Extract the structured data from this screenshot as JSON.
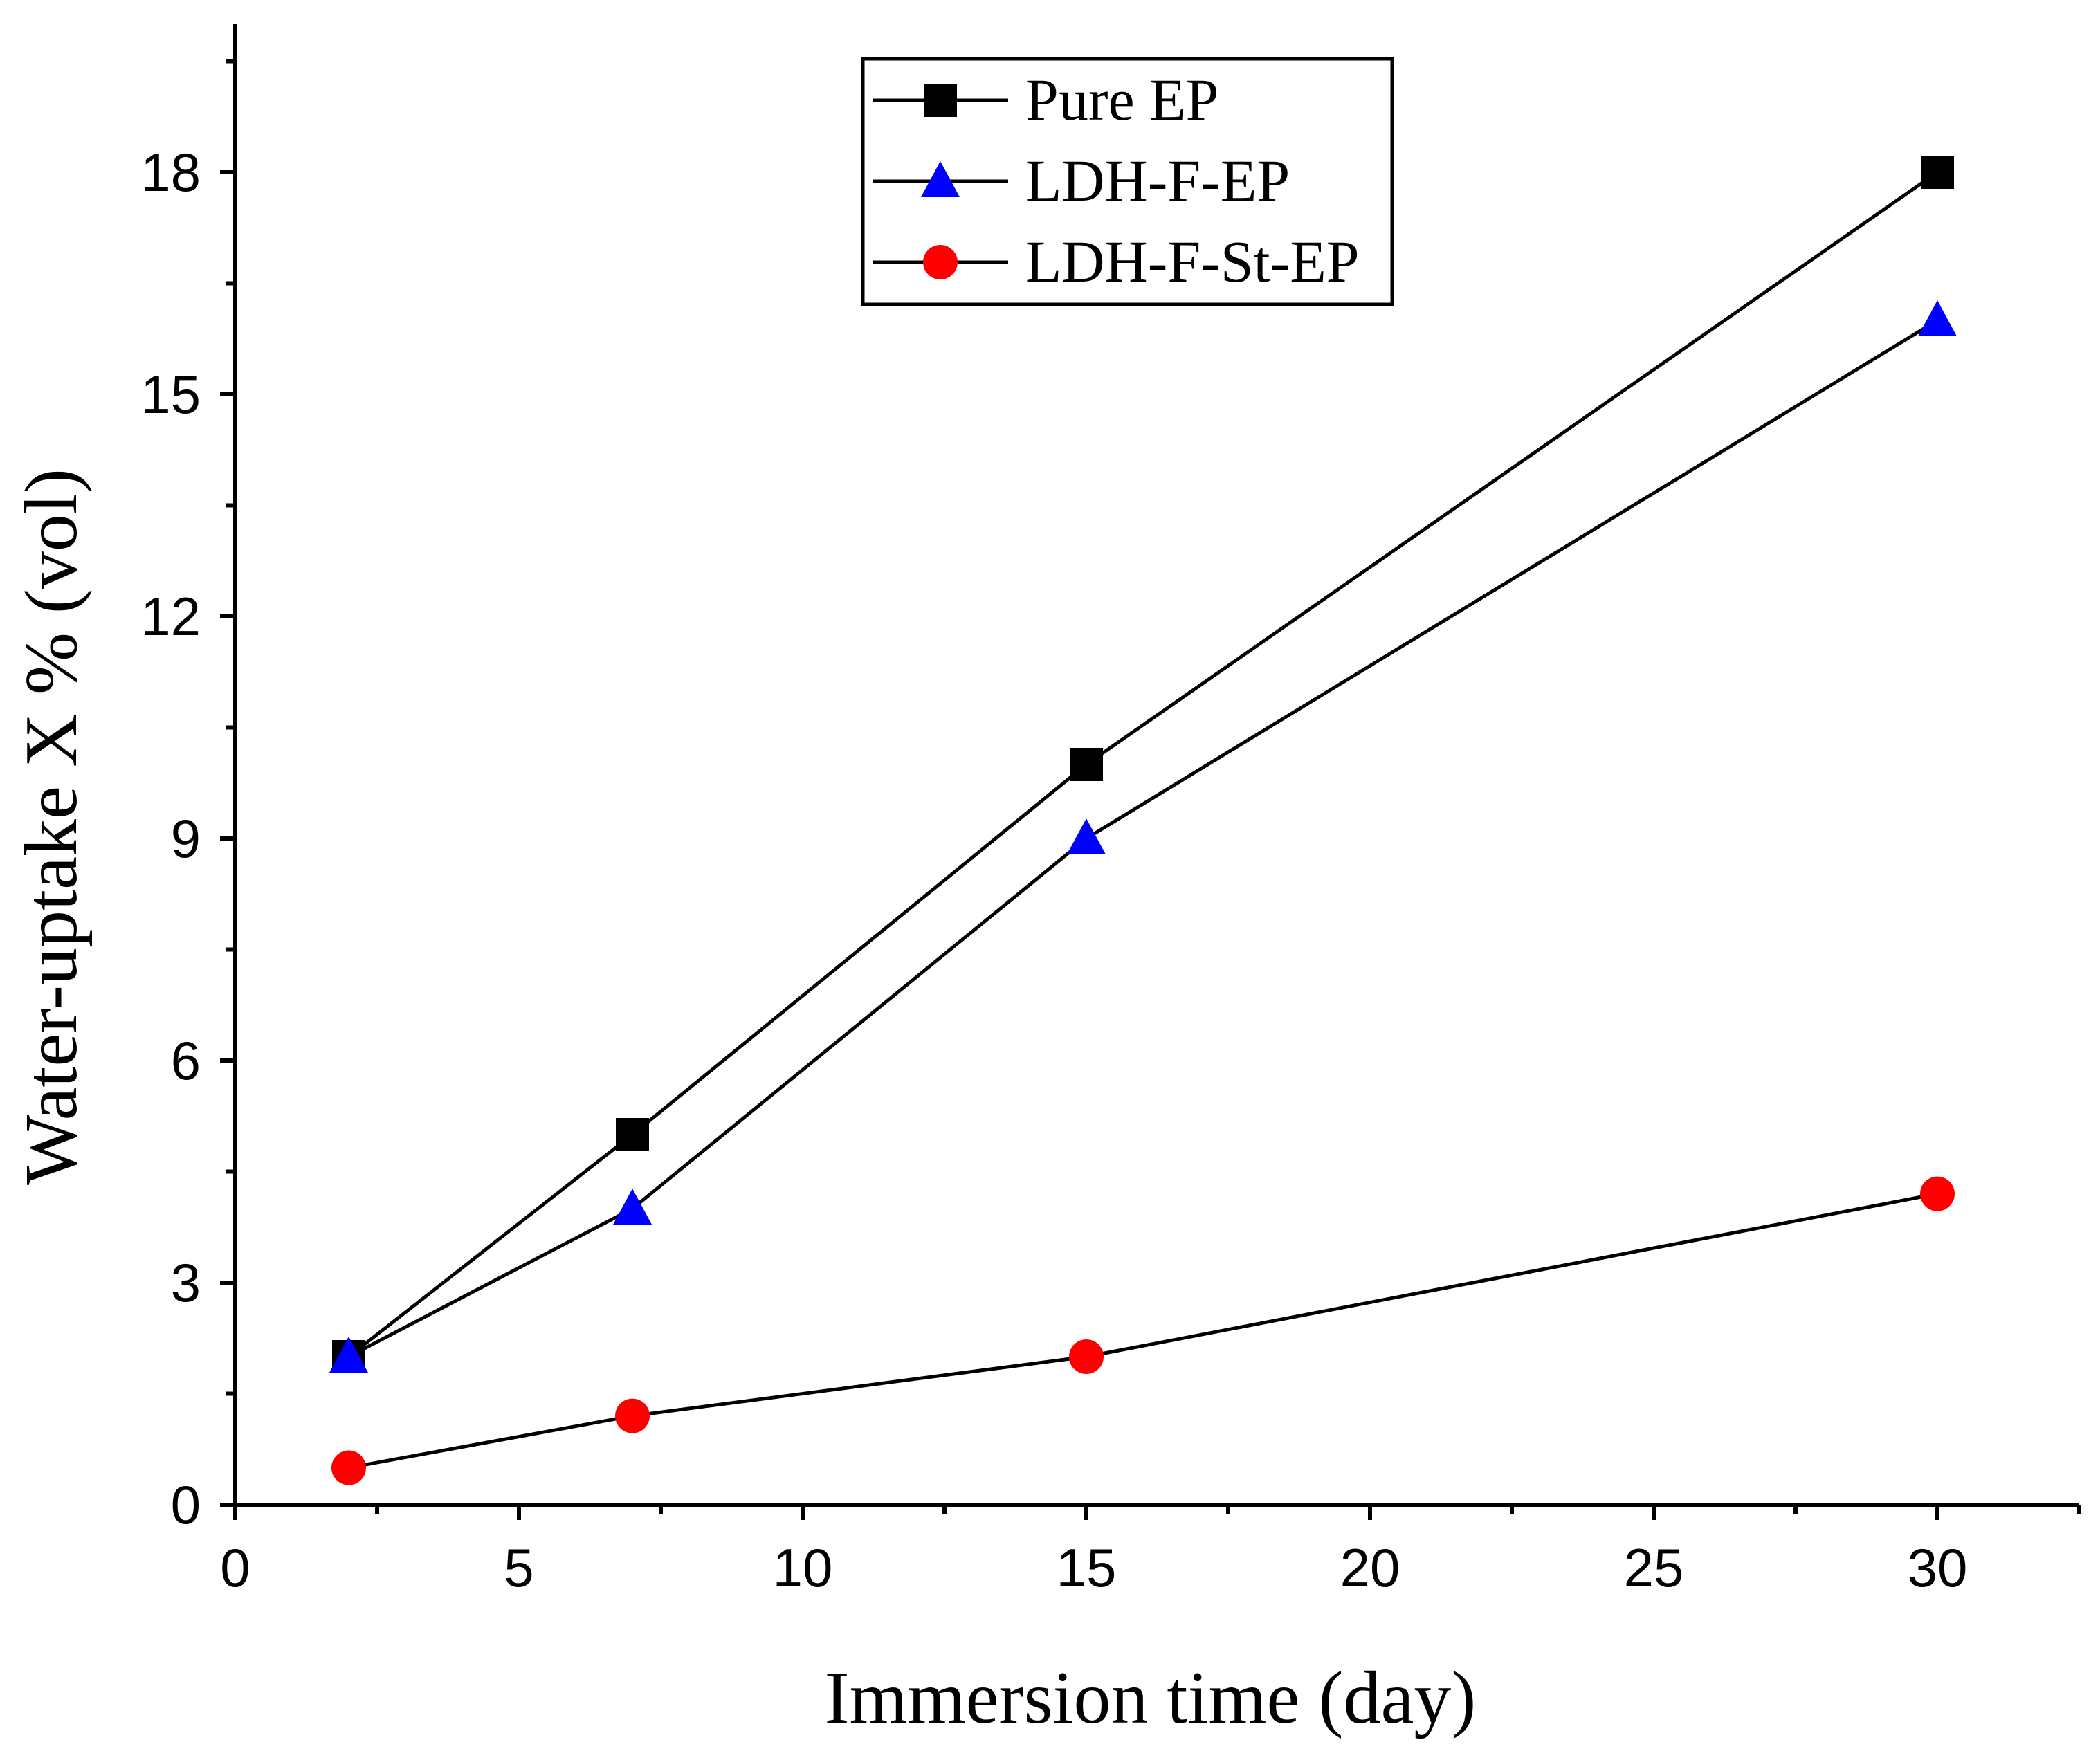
{
  "chart_data": {
    "type": "line",
    "title": "",
    "xlabel": "Immersion time (day)",
    "ylabel": "Water-uptake X  % (vol)",
    "xlim": [
      0,
      32.5
    ],
    "ylim": [
      0,
      20
    ],
    "xticks": [
      0,
      5,
      10,
      15,
      20,
      25,
      30
    ],
    "yticks": [
      0,
      3,
      6,
      9,
      12,
      15,
      18
    ],
    "x": [
      2,
      7,
      15,
      30
    ],
    "legend_position": "top-center",
    "series": [
      {
        "name": "Pure EP",
        "values": [
          2,
          5,
          10,
          18
        ],
        "marker": "square",
        "color": "#000000",
        "line_color": "#000000"
      },
      {
        "name": "LDH-F-EP",
        "values": [
          2,
          4,
          9,
          16
        ],
        "marker": "triangle",
        "color": "#0000ff",
        "line_color": "#000000"
      },
      {
        "name": "LDH-F-St-EP",
        "values": [
          0.5,
          1.2,
          2,
          4.2
        ],
        "marker": "circle",
        "color": "#ff0000",
        "line_color": "#000000"
      }
    ]
  }
}
